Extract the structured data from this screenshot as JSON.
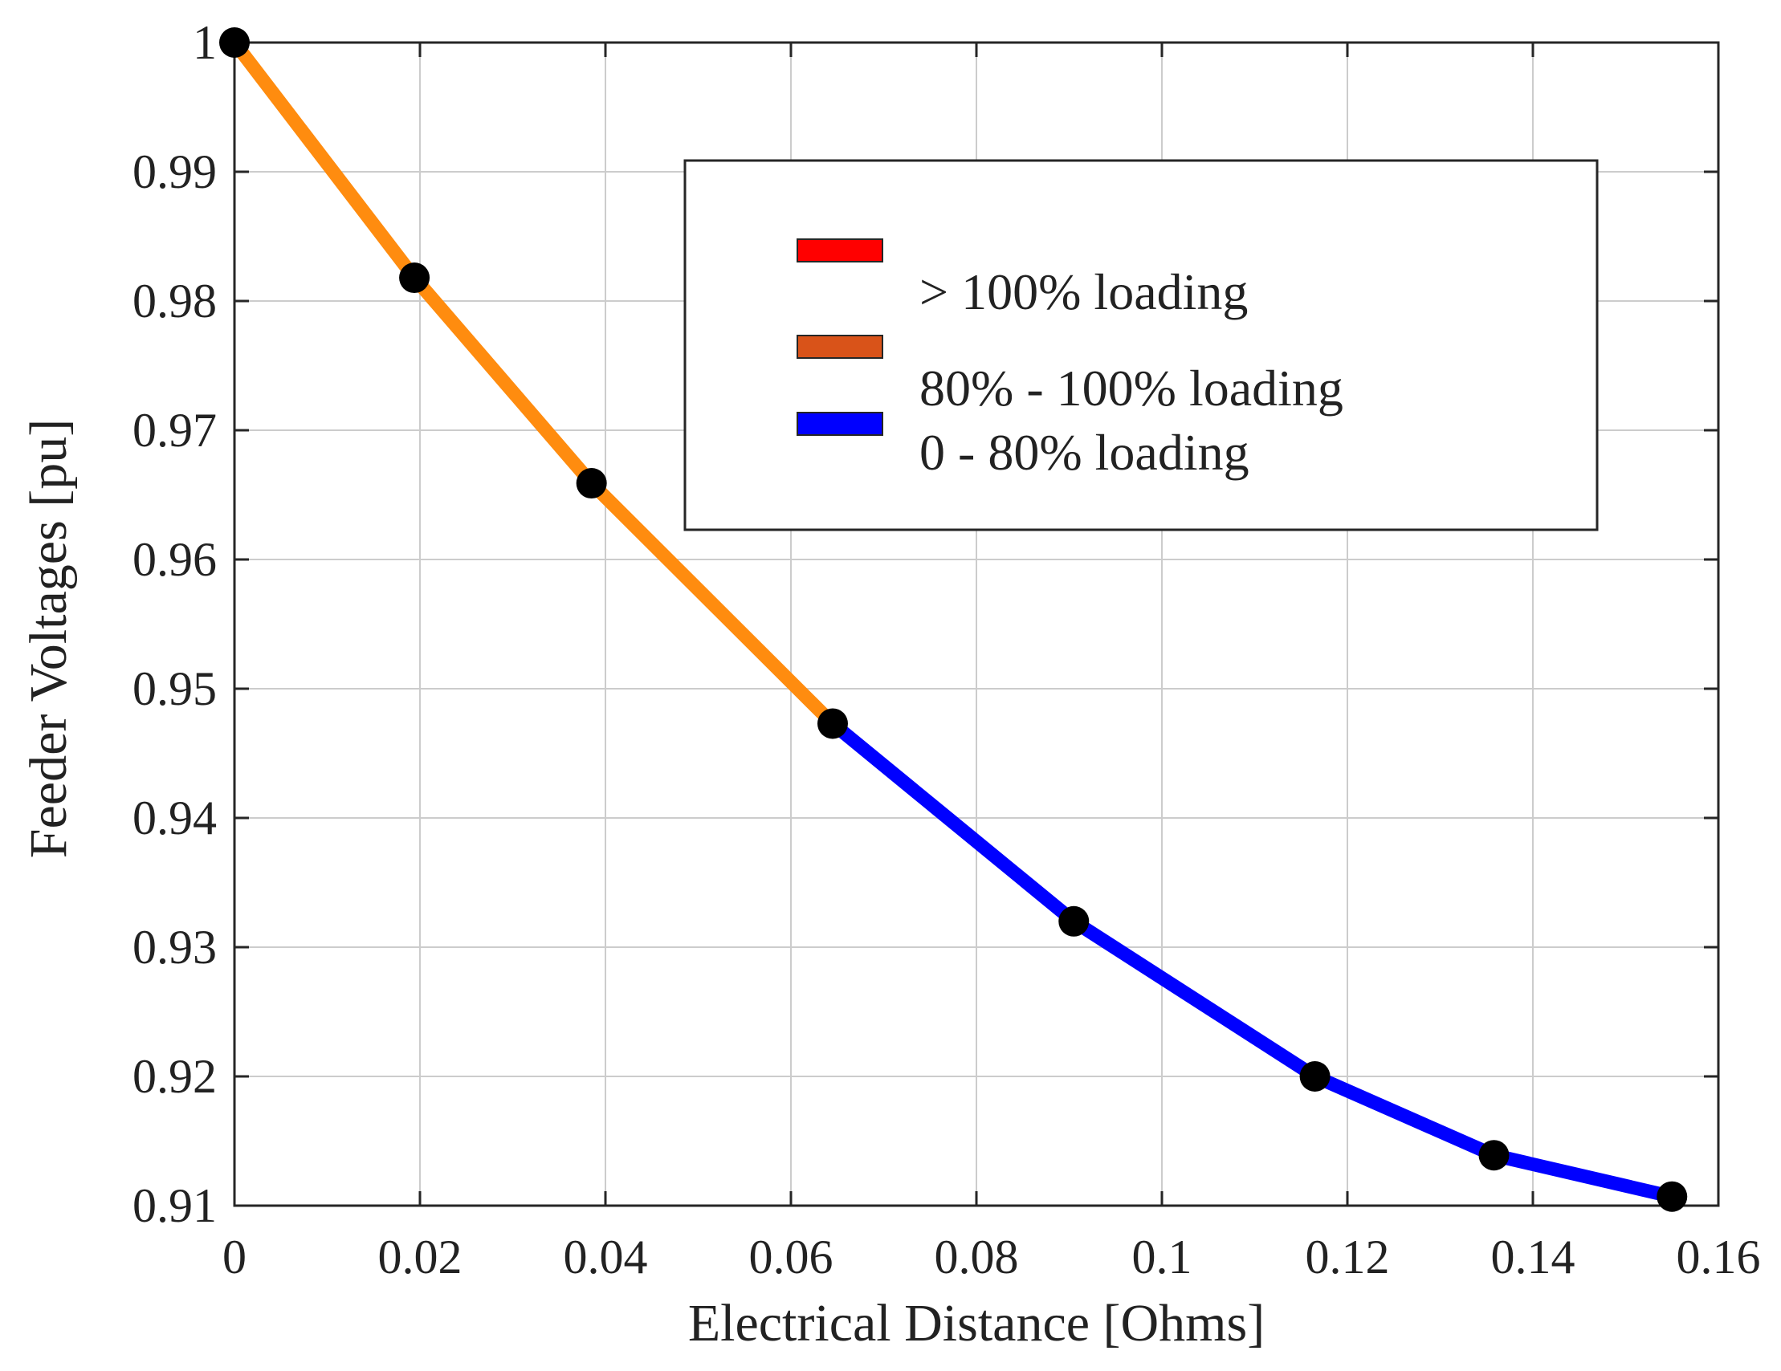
{
  "chart_data": {
    "type": "line",
    "title": "",
    "xlabel": "Electrical Distance [Ohms]",
    "ylabel": "Feeder Voltages [pu]",
    "xlim": [
      0,
      0.16
    ],
    "ylim": [
      0.91,
      1.0
    ],
    "grid": true,
    "x_ticks": [
      0,
      0.02,
      0.04,
      0.06,
      0.08,
      0.1,
      0.12,
      0.14,
      0.16
    ],
    "x_tick_labels": [
      "0",
      "0.02",
      "0.04",
      "0.06",
      "0.08",
      "0.1",
      "0.12",
      "0.14",
      "0.16"
    ],
    "y_ticks": [
      0.91,
      0.92,
      0.93,
      0.94,
      0.95,
      0.96,
      0.97,
      0.98,
      0.99,
      1.0
    ],
    "y_tick_labels": [
      "0.91",
      "0.92",
      "0.93",
      "0.94",
      "0.95",
      "0.96",
      "0.97",
      "0.98",
      "0.99",
      "1"
    ],
    "points": {
      "x": [
        0,
        0.0194,
        0.0385,
        0.0645,
        0.0905,
        0.1165,
        0.1358,
        0.155
      ],
      "y": [
        1.0,
        0.9818,
        0.9659,
        0.9473,
        0.932,
        0.92,
        0.9139,
        0.9107
      ]
    },
    "segment_categories": [
      "80% - 100% loading",
      "80% - 100% loading",
      "80% - 100% loading",
      "0 - 80% loading",
      "0 - 80% loading",
      "0 - 80% loading",
      "0 - 80% loading"
    ],
    "segment_colors": [
      "#ff8c0f",
      "#ff8c0f",
      "#ff8c0f",
      "#0000ff",
      "#0000ff",
      "#0000ff",
      "#0000ff"
    ],
    "marker_color": "#000000",
    "legend": {
      "position": "top-right",
      "entries": [
        {
          "label": "> 100% loading",
          "color": "#ff0000"
        },
        {
          "label": "80% - 100% loading",
          "color": "#d95319"
        },
        {
          "label": "0 - 80% loading",
          "color": "#0000ff"
        }
      ]
    }
  }
}
